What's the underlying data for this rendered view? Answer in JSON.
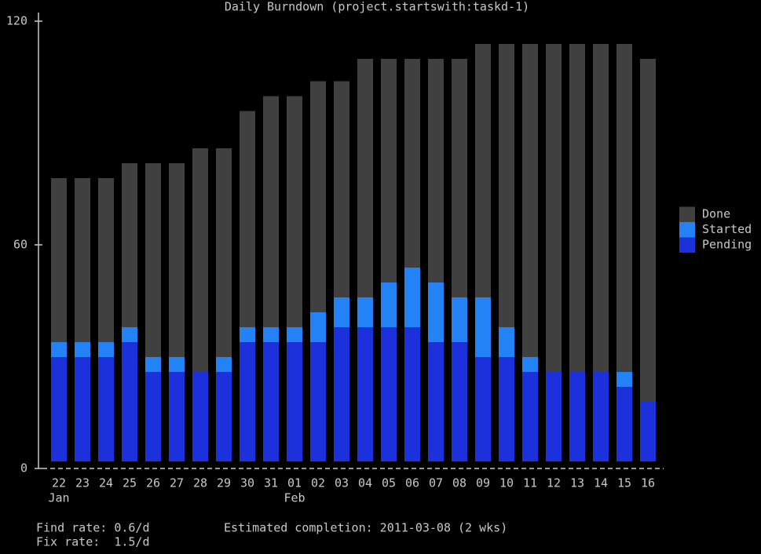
{
  "chart_data": {
    "type": "bar",
    "stacked": true,
    "title": "Daily Burndown (project.startswith:taskd-1)",
    "categories": [
      "22",
      "23",
      "24",
      "25",
      "26",
      "27",
      "28",
      "29",
      "30",
      "31",
      "01",
      "02",
      "03",
      "04",
      "05",
      "06",
      "07",
      "08",
      "09",
      "10",
      "11",
      "12",
      "13",
      "14",
      "15",
      "16"
    ],
    "category_sublabels": [
      "Jan",
      null,
      null,
      null,
      null,
      null,
      null,
      null,
      null,
      null,
      "Feb",
      null,
      null,
      null,
      null,
      null,
      null,
      null,
      null,
      null,
      null,
      null,
      null,
      null,
      null,
      null
    ],
    "series": [
      {
        "name": "Pending",
        "color": "#1c30dc",
        "values": [
          28,
          28,
          28,
          32,
          24,
          24,
          24,
          24,
          32,
          32,
          32,
          32,
          36,
          36,
          36,
          36,
          32,
          32,
          28,
          28,
          24,
          24,
          24,
          24,
          20,
          16
        ]
      },
      {
        "name": "Started",
        "color": "#2382f5",
        "values": [
          4,
          4,
          4,
          4,
          4,
          4,
          0,
          4,
          4,
          4,
          4,
          8,
          8,
          8,
          12,
          16,
          16,
          12,
          16,
          8,
          4,
          0,
          0,
          0,
          4,
          0
        ]
      },
      {
        "name": "Done",
        "color": "#404040",
        "values": [
          44,
          44,
          44,
          44,
          52,
          52,
          60,
          56,
          58,
          62,
          62,
          62,
          58,
          64,
          60,
          56,
          60,
          64,
          68,
          76,
          84,
          88,
          88,
          88,
          88,
          92
        ]
      }
    ],
    "ylim": [
      0,
      120
    ],
    "yticks": [
      0,
      60,
      120
    ],
    "legend": "right",
    "footer": {
      "find_rate": "Find rate: 0.6/d",
      "fix_rate": "Fix rate:  1.5/d",
      "completion": "Estimated completion: 2011-03-08 (2 wks)"
    }
  }
}
